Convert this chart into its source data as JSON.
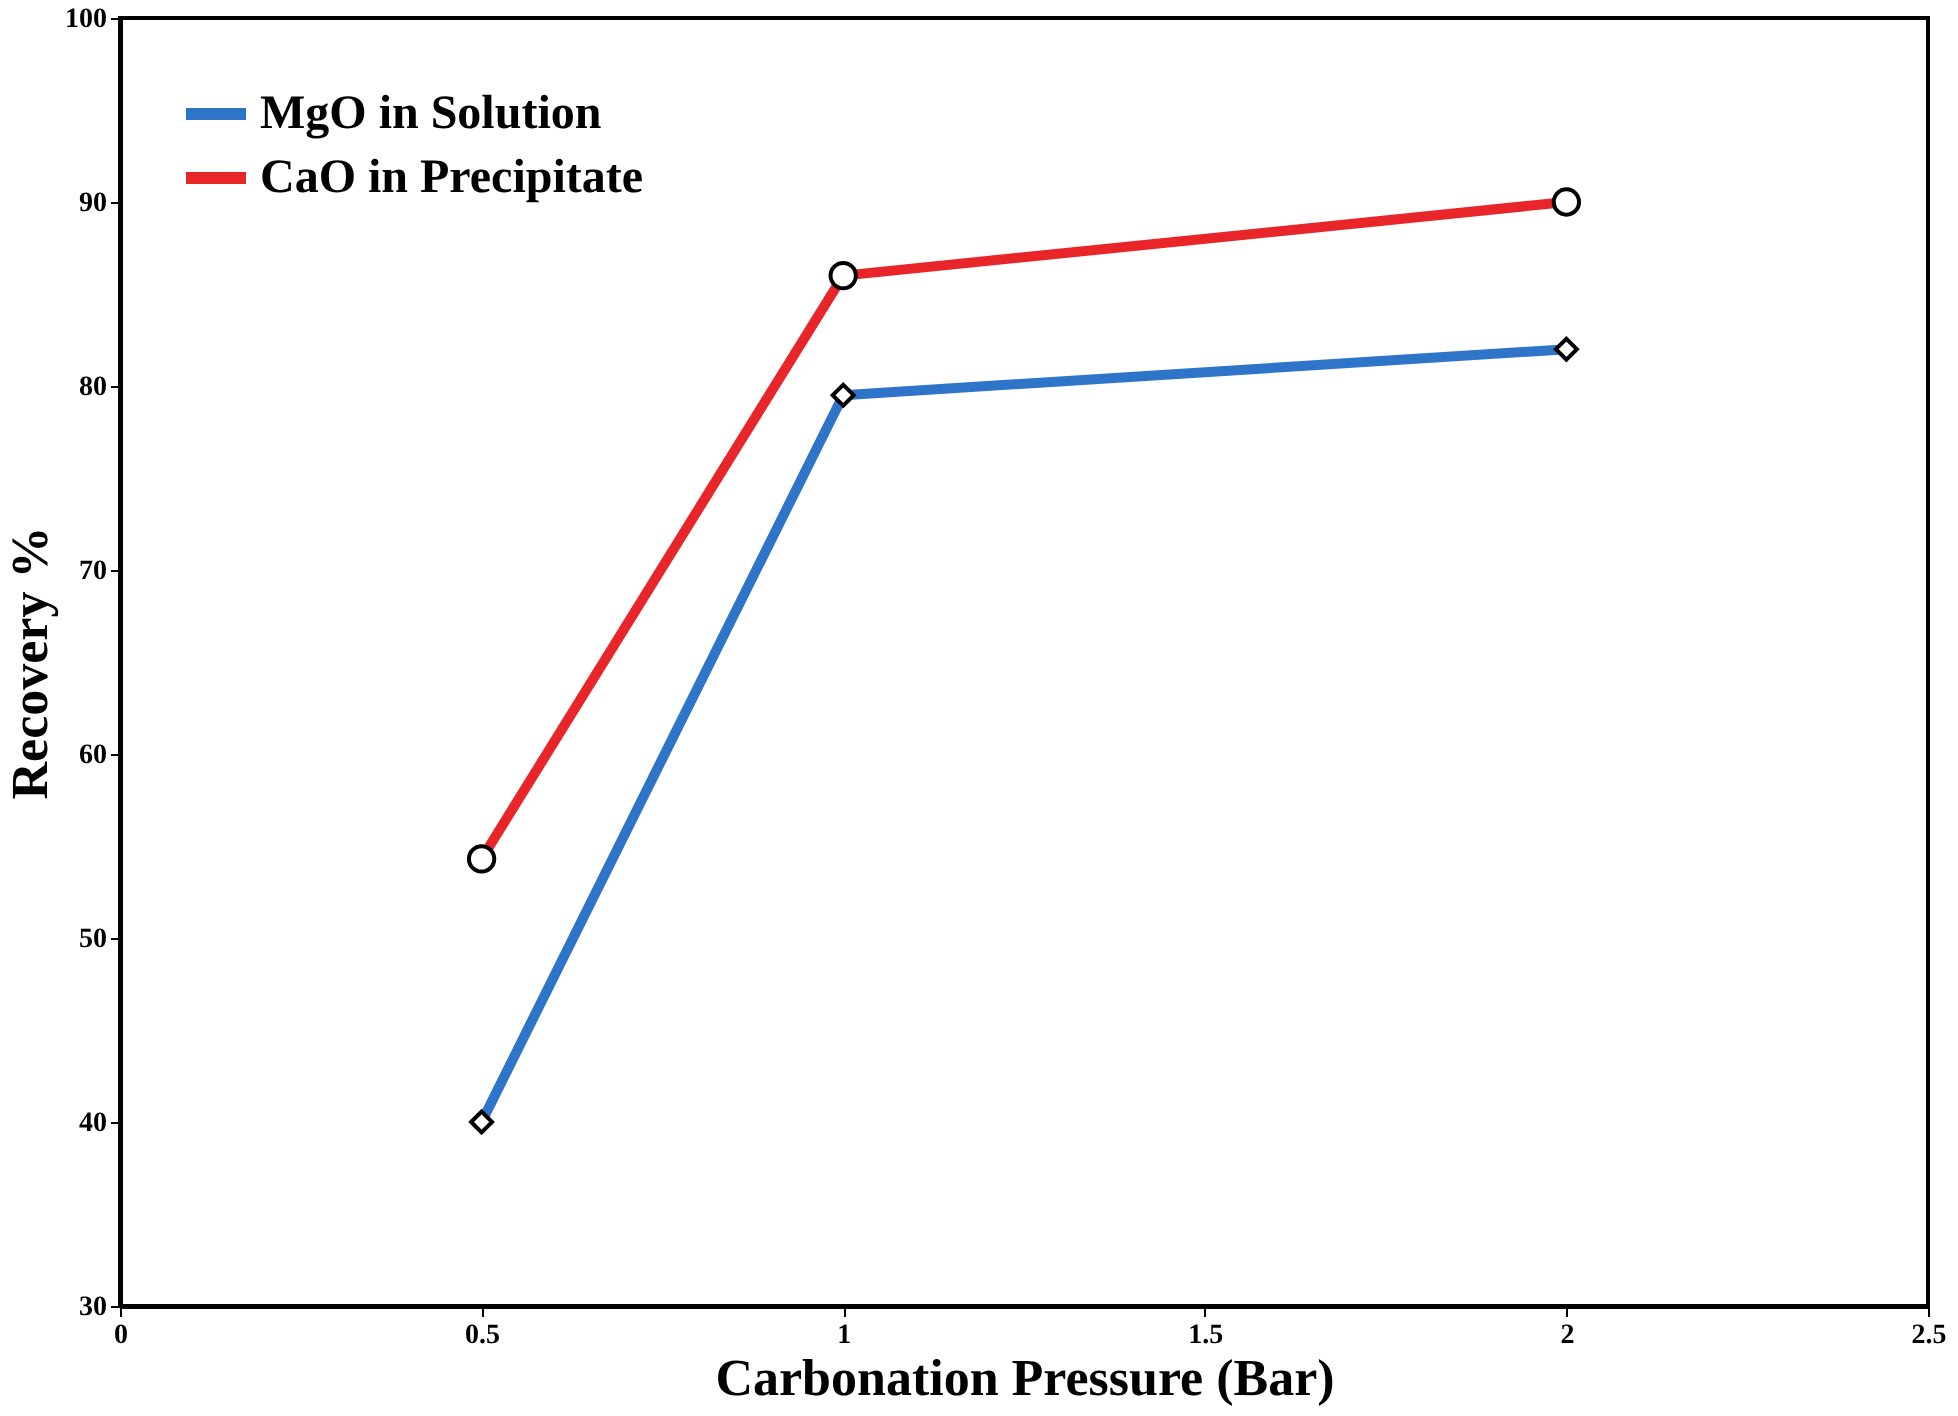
{
  "chart_data": {
    "type": "line",
    "xlabel": "Carbonation Pressure (Bar)",
    "ylabel": "Recovery %",
    "x": [
      0.5,
      1,
      2
    ],
    "series": [
      {
        "name": "MgO in Solution",
        "color": "#2e75c9",
        "marker": "diamond",
        "values": [
          40,
          79.5,
          82
        ]
      },
      {
        "name": "CaO in Precipitate",
        "color": "#e8262a",
        "marker": "circle",
        "values": [
          54.3,
          86,
          90
        ]
      }
    ],
    "xlim": [
      0,
      2.5
    ],
    "xticks": [
      0,
      0.5,
      1,
      1.5,
      2,
      2.5
    ],
    "ylim": [
      30,
      100
    ],
    "yticks": [
      30,
      40,
      50,
      60,
      70,
      80,
      90,
      100
    ],
    "grid": false,
    "legend": "top left",
    "line_style": "solid"
  }
}
